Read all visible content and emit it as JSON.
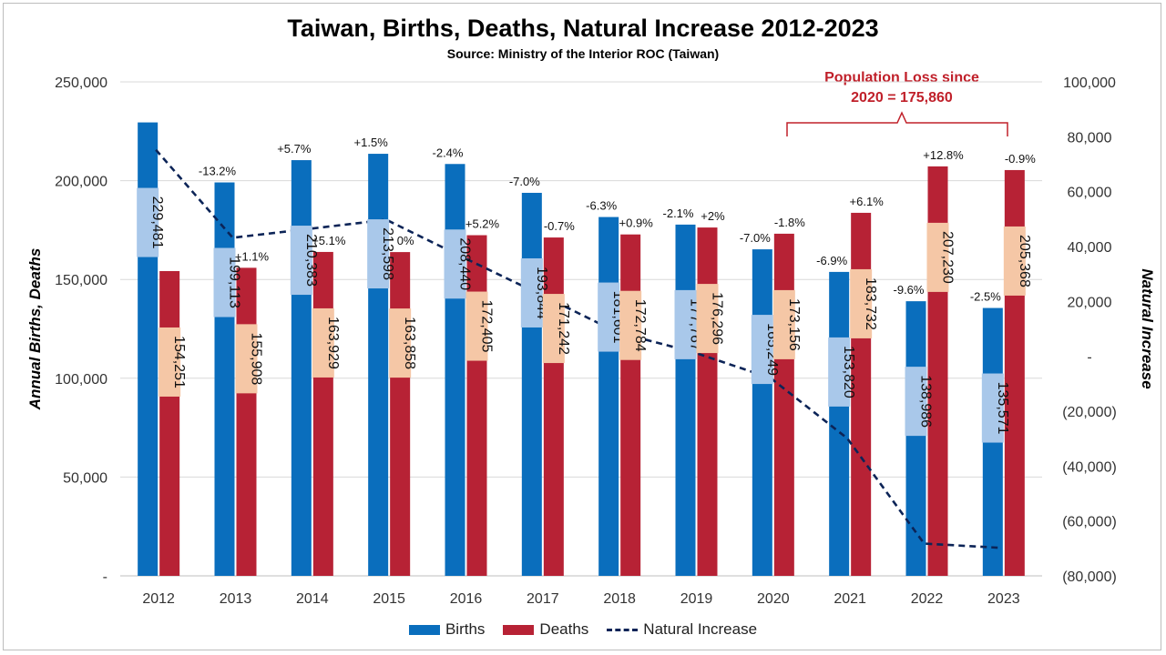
{
  "title": "Taiwan, Births, Deaths, Natural Increase 2012-2023",
  "subtitle": "Source: Ministry of the Interior ROC (Taiwan)",
  "callout": {
    "line1": "Population Loss since",
    "line2": "2020 = 175,860"
  },
  "colors": {
    "births": "#0a6ebd",
    "deaths": "#b72235",
    "natural_increase": "#0c2457",
    "births_label_bg": "#a9c8ea",
    "deaths_label_bg": "#f5c7a6",
    "callout": "#c0202a"
  },
  "chart_data": {
    "type": "bar",
    "categories": [
      "2012",
      "2013",
      "2014",
      "2015",
      "2016",
      "2017",
      "2018",
      "2019",
      "2020",
      "2021",
      "2022",
      "2023"
    ],
    "series": [
      {
        "name": "Births",
        "axis": "left",
        "values": [
          229481,
          199113,
          210383,
          213598,
          208440,
          193844,
          181601,
          177767,
          165249,
          153820,
          138986,
          135571
        ],
        "value_labels": [
          "229,481",
          "199,113",
          "210,383",
          "213,598",
          "208,440",
          "193,844",
          "181,601",
          "177,767",
          "165,249",
          "153,820",
          "138,986",
          "135,571"
        ],
        "pct_labels": [
          "",
          "-13.2%",
          "+5.7%",
          "+1.5%",
          "-2.4%",
          "-7.0%",
          "-6.3%",
          "-2.1%",
          "-7.0%",
          "-6.9%",
          "-9.6%",
          "-2.5%"
        ]
      },
      {
        "name": "Deaths",
        "axis": "left",
        "values": [
          154251,
          155908,
          163929,
          163858,
          172405,
          171242,
          172784,
          176296,
          173156,
          183732,
          207230,
          205368
        ],
        "value_labels": [
          "154,251",
          "155,908",
          "163,929",
          "163,858",
          "172,405",
          "171,242",
          "172,784",
          "176,296",
          "173,156",
          "183,732",
          "207,230",
          "205,368"
        ],
        "pct_labels": [
          "",
          "+1.1%",
          "+5.1%",
          "0%",
          "+5.2%",
          "-0.7%",
          "+0.9%",
          "+2%",
          "-1.8%",
          "+6.1%",
          "+12.8%",
          "-0.9%"
        ]
      },
      {
        "name": "Natural Increase",
        "type": "line",
        "style": "dashed",
        "axis": "right",
        "values": [
          75230,
          43205,
          46454,
          49740,
          36035,
          22602,
          8817,
          1471,
          -7907,
          -29912,
          -68244,
          -69797
        ]
      }
    ],
    "ylabel": "Annual Births, Deaths",
    "ylabel_right": "Natural Increase",
    "ylim": [
      0,
      250000
    ],
    "ylim_right": [
      -80000,
      100000
    ],
    "yticks": [
      "-",
      "50,000",
      "100,000",
      "150,000",
      "200,000",
      "250,000"
    ],
    "yticks_right": [
      "(80,000)",
      "(60,000)",
      "(40,000)",
      "(20,000)",
      "-",
      "20,000",
      "40,000",
      "60,000",
      "80,000",
      "100,000"
    ],
    "grid": true,
    "legend_position": "bottom"
  },
  "legend": {
    "births": "Births",
    "deaths": "Deaths",
    "natural_increase": "Natural Increase"
  }
}
